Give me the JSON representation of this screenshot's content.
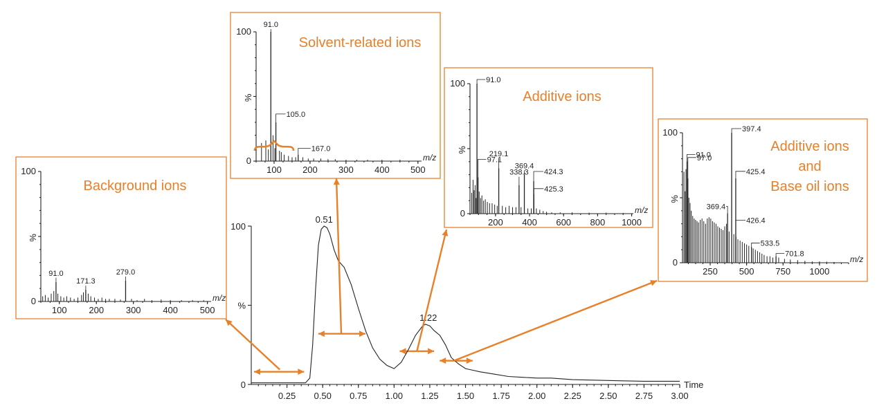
{
  "colors": {
    "accent": "#E8802A",
    "trace": "#222222"
  },
  "chart_data": [
    {
      "type": "line",
      "id": "chromatogram",
      "x_ticks": [
        "0.25",
        "0.50",
        "0.75",
        "1.00",
        "1.25",
        "1.50",
        "1.75",
        "2.00",
        "2.25",
        "2.50",
        "2.75",
        "3.00"
      ],
      "y_ticks": [
        "0",
        "%",
        "100"
      ],
      "xlabel": "Time",
      "xlim": [
        0,
        3.0
      ],
      "ylim": [
        0,
        100
      ],
      "annotations": [
        "0.51",
        "1.22"
      ],
      "x": [
        0.0,
        0.05,
        0.1,
        0.2,
        0.3,
        0.38,
        0.41,
        0.43,
        0.45,
        0.47,
        0.49,
        0.51,
        0.53,
        0.55,
        0.58,
        0.61,
        0.65,
        0.7,
        0.75,
        0.8,
        0.85,
        0.9,
        0.95,
        1.0,
        1.05,
        1.1,
        1.15,
        1.2,
        1.22,
        1.25,
        1.28,
        1.32,
        1.36,
        1.4,
        1.45,
        1.5,
        1.55,
        1.6,
        1.7,
        1.8,
        1.9,
        2.0,
        2.1,
        2.25,
        2.5,
        2.75,
        3.0
      ],
      "y": [
        1,
        1,
        1,
        1,
        1,
        1,
        4,
        25,
        60,
        88,
        98,
        100,
        99,
        95,
        85,
        78,
        74,
        63,
        48,
        34,
        23,
        16,
        12,
        10,
        14,
        22,
        31,
        37,
        38,
        37,
        34,
        31,
        25,
        17,
        13,
        10,
        9,
        8,
        6.5,
        5,
        4.5,
        4,
        4,
        3,
        2.5,
        2,
        2
      ],
      "ranges": [
        [
          0.0,
          0.37
        ],
        [
          0.45,
          0.8
        ],
        [
          1.02,
          1.28
        ],
        [
          1.3,
          1.55
        ]
      ]
    },
    {
      "type": "bar",
      "id": "background",
      "title": "Background ions",
      "xlabel": "m/z",
      "x_ticks": [
        "100",
        "200",
        "300",
        "400",
        "500"
      ],
      "y_ticks": [
        "0",
        "%",
        "100"
      ],
      "xlim": [
        50,
        510
      ],
      "ylim": [
        0,
        100
      ],
      "peaks": [
        {
          "mz": 91.0,
          "value": 15,
          "label": "91.0"
        },
        {
          "mz": 171.3,
          "value": 9,
          "label": "171.3"
        },
        {
          "mz": 279.0,
          "value": 16,
          "label": "279.0"
        }
      ],
      "noise": [
        [
          55,
          4
        ],
        [
          62,
          5
        ],
        [
          70,
          3
        ],
        [
          78,
          6
        ],
        [
          85,
          8
        ],
        [
          96,
          6
        ],
        [
          104,
          4
        ],
        [
          112,
          3
        ],
        [
          120,
          4
        ],
        [
          130,
          3
        ],
        [
          140,
          2
        ],
        [
          150,
          3
        ],
        [
          160,
          5
        ],
        [
          165,
          7
        ],
        [
          178,
          6
        ],
        [
          185,
          4
        ],
        [
          195,
          3
        ],
        [
          205,
          2
        ],
        [
          215,
          3
        ],
        [
          225,
          2
        ],
        [
          235,
          2
        ],
        [
          250,
          2
        ],
        [
          265,
          1.5
        ],
        [
          295,
          2
        ],
        [
          310,
          1
        ],
        [
          330,
          2
        ],
        [
          350,
          1
        ],
        [
          375,
          1.5
        ],
        [
          400,
          1
        ],
        [
          430,
          1
        ],
        [
          460,
          1
        ],
        [
          490,
          1
        ]
      ]
    },
    {
      "type": "bar",
      "id": "solvent",
      "title": "Solvent-related ions",
      "xlabel": "m/z",
      "x_ticks": [
        "100",
        "200",
        "300",
        "400",
        "500"
      ],
      "y_ticks": [
        "0",
        "%",
        "100"
      ],
      "xlim": [
        50,
        510
      ],
      "ylim": [
        0,
        100
      ],
      "peaks": [
        {
          "mz": 91.0,
          "value": 100,
          "label": "91.0"
        },
        {
          "mz": 105.0,
          "value": 30,
          "label": "105.0"
        },
        {
          "mz": 167.0,
          "value": 5,
          "label": "167.0"
        }
      ],
      "noise": [
        [
          65,
          14
        ],
        [
          77,
          16
        ],
        [
          84,
          9
        ],
        [
          97,
          20
        ],
        [
          102,
          10
        ],
        [
          115,
          8
        ],
        [
          120,
          7
        ],
        [
          128,
          5
        ],
        [
          140,
          4
        ],
        [
          150,
          3
        ],
        [
          160,
          3
        ],
        [
          180,
          3
        ],
        [
          195,
          2
        ],
        [
          210,
          2
        ],
        [
          230,
          2
        ],
        [
          250,
          1.5
        ],
        [
          270,
          1.5
        ],
        [
          300,
          1
        ],
        [
          330,
          1
        ],
        [
          360,
          1
        ],
        [
          400,
          1
        ],
        [
          450,
          1
        ]
      ]
    },
    {
      "type": "bar",
      "id": "additive",
      "title": "Additive ions",
      "xlabel": "m/z",
      "x_ticks": [
        "200",
        "400",
        "600",
        "800",
        "1000"
      ],
      "y_ticks": [
        "0",
        "%",
        "100"
      ],
      "xlim": [
        50,
        1010
      ],
      "ylim": [
        0,
        100
      ],
      "peaks": [
        {
          "mz": 91.0,
          "value": 100,
          "label": "91.0"
        },
        {
          "mz": 97.1,
          "value": 28,
          "label": "97.1"
        },
        {
          "mz": 219.1,
          "value": 35,
          "label": "219.1"
        },
        {
          "mz": 338.3,
          "value": 22,
          "label": "338.3"
        },
        {
          "mz": 369.4,
          "value": 30,
          "label": "369.4"
        },
        {
          "mz": 424.3,
          "value": 25,
          "label": "424.3"
        },
        {
          "mz": 425.3,
          "value": 15,
          "label": "425.3"
        }
      ],
      "noise": [
        [
          60,
          16
        ],
        [
          68,
          26
        ],
        [
          74,
          18
        ],
        [
          80,
          22
        ],
        [
          86,
          12
        ],
        [
          104,
          17
        ],
        [
          112,
          12
        ],
        [
          120,
          14
        ],
        [
          130,
          10
        ],
        [
          140,
          11
        ],
        [
          152,
          9
        ],
        [
          165,
          8
        ],
        [
          180,
          8
        ],
        [
          195,
          7
        ],
        [
          210,
          6
        ],
        [
          240,
          6
        ],
        [
          260,
          5
        ],
        [
          280,
          6
        ],
        [
          300,
          5
        ],
        [
          320,
          5
        ],
        [
          350,
          5
        ],
        [
          390,
          4
        ],
        [
          410,
          4
        ],
        [
          440,
          4
        ],
        [
          460,
          3
        ],
        [
          480,
          2
        ],
        [
          500,
          1.5
        ],
        [
          530,
          1
        ],
        [
          580,
          1
        ],
        [
          650,
          1
        ],
        [
          750,
          0.8
        ],
        [
          850,
          0.8
        ],
        [
          950,
          0.6
        ]
      ]
    },
    {
      "type": "bar",
      "id": "additive-base-oil",
      "title": "Additive ions and Base oil ions",
      "title_lines": [
        "Additive ions",
        "and",
        "Base oil ions"
      ],
      "xlabel": "m/z",
      "x_ticks": [
        "250",
        "500",
        "750",
        "1000"
      ],
      "y_ticks": [
        "0",
        "%",
        "100"
      ],
      "xlim": [
        60,
        1200
      ],
      "ylim": [
        0,
        100
      ],
      "peaks": [
        {
          "mz": 91.0,
          "value": 78,
          "label": "91.0"
        },
        {
          "mz": 97.0,
          "value": 65,
          "label": "97.0"
        },
        {
          "mz": 369.4,
          "value": 38,
          "label": "369.4"
        },
        {
          "mz": 397.4,
          "value": 100,
          "label": "397.4"
        },
        {
          "mz": 425.4,
          "value": 65,
          "label": "425.4"
        },
        {
          "mz": 426.4,
          "value": 20,
          "label": "426.4"
        },
        {
          "mz": 533.5,
          "value": 12,
          "label": "533.5"
        },
        {
          "mz": 701.8,
          "value": 5,
          "label": "701.8"
        }
      ],
      "noise": [
        [
          70,
          70
        ],
        [
          78,
          55
        ],
        [
          84,
          72
        ],
        [
          104,
          50
        ],
        [
          112,
          46
        ],
        [
          120,
          40
        ],
        [
          130,
          36
        ],
        [
          140,
          34
        ],
        [
          150,
          33
        ],
        [
          160,
          32
        ],
        [
          170,
          31
        ],
        [
          182,
          33
        ],
        [
          194,
          34
        ],
        [
          206,
          32
        ],
        [
          218,
          30
        ],
        [
          230,
          34
        ],
        [
          242,
          35
        ],
        [
          254,
          34
        ],
        [
          266,
          32
        ],
        [
          278,
          31
        ],
        [
          290,
          30
        ],
        [
          302,
          28
        ],
        [
          314,
          27
        ],
        [
          326,
          26
        ],
        [
          338,
          25
        ],
        [
          350,
          28
        ],
        [
          362,
          30
        ],
        [
          380,
          24
        ],
        [
          412,
          22
        ],
        [
          440,
          18
        ],
        [
          455,
          17
        ],
        [
          470,
          16
        ],
        [
          485,
          15
        ],
        [
          500,
          14
        ],
        [
          515,
          13
        ],
        [
          545,
          11
        ],
        [
          560,
          10
        ],
        [
          575,
          9
        ],
        [
          590,
          8
        ],
        [
          605,
          7
        ],
        [
          620,
          6
        ],
        [
          640,
          5
        ],
        [
          660,
          5
        ],
        [
          680,
          4
        ],
        [
          720,
          4
        ],
        [
          760,
          3
        ],
        [
          800,
          2.5
        ],
        [
          850,
          2
        ],
        [
          900,
          1.5
        ],
        [
          950,
          1
        ],
        [
          1000,
          1
        ],
        [
          1050,
          0.8
        ],
        [
          1100,
          0.6
        ]
      ]
    }
  ]
}
